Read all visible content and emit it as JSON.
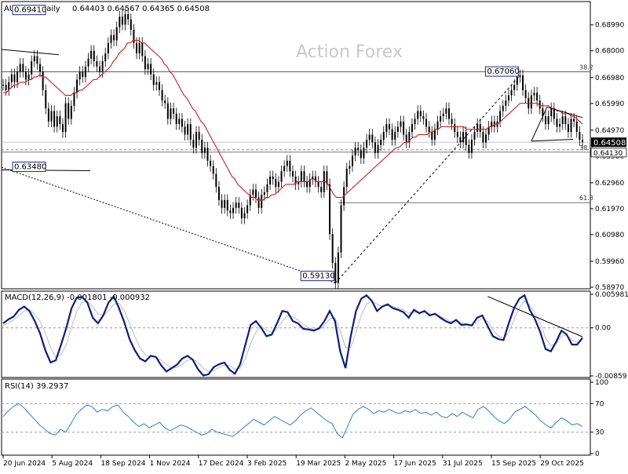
{
  "chart_data": [
    {
      "type": "candlestick",
      "panel": "price",
      "symbol_label": "AUDUSD,Daily",
      "ohlc_label": "0.64403 0.64567 0.64365 0.64508",
      "watermark": "Action Forex",
      "ylim": [
        0.5897,
        0.6982
      ],
      "y_ticks": [
        "0.68990",
        "0.68000",
        "0.66980",
        "0.65990",
        "0.64970",
        "0.63980",
        "0.62960",
        "0.61970",
        "0.60980",
        "0.59960",
        "0.58970"
      ],
      "current_price": "0.64508",
      "level_badge": "0.64130",
      "fib_levels": [
        {
          "label": "38.2",
          "value": 0.672
        },
        {
          "label": "38.2",
          "value": 0.6413
        },
        {
          "label": "61.8",
          "value": 0.622
        }
      ],
      "annotations": [
        {
          "text": "0.69410",
          "value": 0.6941
        },
        {
          "text": "0.67060",
          "value": 0.6706
        },
        {
          "text": "0.63480",
          "value": 0.6348
        },
        {
          "text": "0.59130",
          "value": 0.5913
        }
      ],
      "x_labels": [
        "20 Jun 2024",
        "5 Aug 2024",
        "18 Sep 2024",
        "1 Nov 2024",
        "17 Dec 2024",
        "3 Feb 2025",
        "19 Mar 2025",
        "2 May 2025",
        "17 Jun 2025",
        "31 Jul 2025",
        "15 Sep 2025",
        "29 Oct 2025"
      ],
      "close_series": [
        0.667,
        0.665,
        0.668,
        0.671,
        0.668,
        0.672,
        0.675,
        0.672,
        0.669,
        0.671,
        0.676,
        0.678,
        0.675,
        0.672,
        0.665,
        0.658,
        0.653,
        0.657,
        0.651,
        0.655,
        0.652,
        0.649,
        0.66,
        0.654,
        0.659,
        0.664,
        0.669,
        0.672,
        0.67,
        0.674,
        0.677,
        0.68,
        0.676,
        0.674,
        0.672,
        0.676,
        0.679,
        0.683,
        0.686,
        0.684,
        0.689,
        0.693,
        0.69,
        0.694,
        0.692,
        0.688,
        0.683,
        0.679,
        0.683,
        0.678,
        0.673,
        0.675,
        0.671,
        0.667,
        0.668,
        0.665,
        0.661,
        0.66,
        0.654,
        0.658,
        0.656,
        0.652,
        0.654,
        0.651,
        0.648,
        0.652,
        0.646,
        0.643,
        0.649,
        0.646,
        0.641,
        0.643,
        0.638,
        0.636,
        0.633,
        0.628,
        0.623,
        0.62,
        0.623,
        0.619,
        0.618,
        0.62,
        0.622,
        0.62,
        0.616,
        0.618,
        0.621,
        0.625,
        0.627,
        0.624,
        0.62,
        0.625,
        0.626,
        0.629,
        0.632,
        0.631,
        0.628,
        0.63,
        0.634,
        0.636,
        0.638,
        0.634,
        0.632,
        0.629,
        0.63,
        0.634,
        0.63,
        0.628,
        0.631,
        0.632,
        0.63,
        0.628,
        0.626,
        0.634,
        0.629,
        0.61,
        0.599,
        0.5913,
        0.603,
        0.621,
        0.628,
        0.635,
        0.636,
        0.64,
        0.643,
        0.642,
        0.639,
        0.643,
        0.646,
        0.648,
        0.645,
        0.641,
        0.644,
        0.646,
        0.649,
        0.652,
        0.65,
        0.646,
        0.649,
        0.651,
        0.653,
        0.648,
        0.645,
        0.649,
        0.652,
        0.654,
        0.657,
        0.655,
        0.654,
        0.651,
        0.649,
        0.646,
        0.65,
        0.653,
        0.655,
        0.656,
        0.658,
        0.654,
        0.652,
        0.649,
        0.647,
        0.645,
        0.649,
        0.644,
        0.641,
        0.646,
        0.649,
        0.652,
        0.649,
        0.645,
        0.648,
        0.651,
        0.653,
        0.651,
        0.653,
        0.657,
        0.659,
        0.661,
        0.663,
        0.665,
        0.667,
        0.67,
        0.6706,
        0.665,
        0.662,
        0.658,
        0.663,
        0.664,
        0.661,
        0.658,
        0.655,
        0.652,
        0.655,
        0.658,
        0.654,
        0.651,
        0.652,
        0.655,
        0.652,
        0.649,
        0.654,
        0.653,
        0.649,
        0.646,
        0.6451
      ],
      "ma_series": [
        0.664,
        0.664,
        0.665,
        0.666,
        0.667,
        0.667,
        0.668,
        0.668,
        0.668,
        0.669,
        0.669,
        0.67,
        0.67,
        0.671,
        0.67,
        0.67,
        0.669,
        0.668,
        0.667,
        0.666,
        0.665,
        0.664,
        0.663,
        0.663,
        0.663,
        0.664,
        0.664,
        0.665,
        0.665,
        0.666,
        0.667,
        0.668,
        0.669,
        0.669,
        0.67,
        0.671,
        0.672,
        0.673,
        0.674,
        0.676,
        0.677,
        0.679,
        0.68,
        0.681,
        0.683,
        0.683,
        0.684,
        0.684,
        0.684,
        0.683,
        0.683,
        0.682,
        0.681,
        0.68,
        0.679,
        0.678,
        0.677,
        0.675,
        0.674,
        0.672,
        0.671,
        0.669,
        0.667,
        0.665,
        0.663,
        0.662,
        0.66,
        0.658,
        0.657,
        0.655,
        0.653,
        0.652,
        0.65,
        0.648,
        0.646,
        0.644,
        0.642,
        0.64,
        0.638,
        0.636,
        0.634,
        0.632,
        0.631,
        0.629,
        0.628,
        0.627,
        0.626,
        0.625,
        0.624,
        0.624,
        0.623,
        0.623,
        0.623,
        0.624,
        0.624,
        0.625,
        0.625,
        0.626,
        0.627,
        0.628,
        0.629,
        0.629,
        0.629,
        0.629,
        0.63,
        0.63,
        0.63,
        0.63,
        0.63,
        0.631,
        0.631,
        0.63,
        0.63,
        0.63,
        0.63,
        0.629,
        0.627,
        0.625,
        0.624,
        0.624,
        0.624,
        0.625,
        0.626,
        0.627,
        0.628,
        0.629,
        0.63,
        0.631,
        0.632,
        0.633,
        0.634,
        0.635,
        0.636,
        0.637,
        0.638,
        0.639,
        0.64,
        0.641,
        0.642,
        0.643,
        0.643,
        0.644,
        0.645,
        0.645,
        0.646,
        0.647,
        0.647,
        0.648,
        0.648,
        0.648,
        0.648,
        0.649,
        0.649,
        0.65,
        0.65,
        0.651,
        0.651,
        0.651,
        0.651,
        0.651,
        0.651,
        0.651,
        0.651,
        0.651,
        0.65,
        0.65,
        0.65,
        0.65,
        0.65,
        0.65,
        0.65,
        0.65,
        0.651,
        0.651,
        0.652,
        0.652,
        0.653,
        0.654,
        0.655,
        0.656,
        0.657,
        0.658,
        0.659,
        0.66,
        0.66,
        0.66,
        0.66,
        0.66,
        0.66,
        0.66,
        0.659,
        0.659,
        0.659,
        0.659,
        0.658,
        0.658,
        0.657,
        0.657,
        0.656,
        0.656,
        0.656,
        0.655,
        0.655,
        0.654,
        0.653,
        0.652
      ],
      "series": [
        {
          "name": "price",
          "color": "#000000"
        },
        {
          "name": "moving average",
          "color": "#cc1f1f"
        }
      ]
    },
    {
      "type": "line",
      "panel": "macd",
      "label": "MACD(12,26,9) -0.001801 -0.000932",
      "ylim": [
        -0.00859,
        0.005981
      ],
      "y_ticks": [
        "0.005981",
        "0.00",
        "-0.00859"
      ],
      "series": [
        {
          "name": "MACD",
          "color": "#0b1f7a"
        },
        {
          "name": "signal",
          "color": "#bdbdbd"
        }
      ],
      "macd_values": [
        0.0008,
        0.0015,
        0.002,
        0.0032,
        0.0038,
        0.003,
        0.0012,
        -0.001,
        -0.004,
        -0.0062,
        -0.0058,
        -0.003,
        0.0,
        0.0035,
        0.0054,
        0.0055,
        0.0045,
        0.0018,
        0.0008,
        0.0022,
        0.0045,
        0.0056,
        0.0035,
        0.001,
        -0.002,
        -0.004,
        -0.0055,
        -0.006,
        -0.005,
        -0.0052,
        -0.0067,
        -0.0078,
        -0.0072,
        -0.0066,
        -0.0055,
        -0.005,
        -0.0057,
        -0.0074,
        -0.0085,
        -0.0083,
        -0.007,
        -0.0065,
        -0.0062,
        -0.0075,
        -0.0082,
        -0.0065,
        -0.003,
        0.0005,
        0.0012,
        0.0,
        -0.0015,
        -0.0012,
        0.0008,
        0.003,
        0.0028,
        0.0012,
        0.0008,
        -0.0002,
        -0.0003,
        -0.0005,
        -0.0001,
        0.0012,
        0.003,
        0.0012,
        -0.0042,
        -0.0072,
        -0.0015,
        0.003,
        0.0052,
        0.0058,
        0.0048,
        0.003,
        0.0038,
        0.0042,
        0.0035,
        0.0032,
        0.0028,
        0.0018,
        0.0032,
        0.0026,
        0.003,
        0.0022,
        0.0025,
        0.0018,
        0.0012,
        0.0008,
        0.0014,
        0.0005,
        0.0006,
        0.0004,
        0.0018,
        0.0022,
        0.0003,
        -0.0015,
        -0.002,
        -0.0022,
        0.0008,
        0.0035,
        0.0052,
        0.0058,
        0.0032,
        0.0015,
        -0.0008,
        -0.0038,
        -0.0042,
        -0.0025,
        -0.0005,
        -0.0012,
        -0.003,
        -0.003,
        -0.0018
      ],
      "signal_values": [
        0.0004,
        0.0009,
        0.0014,
        0.0022,
        0.003,
        0.0032,
        0.0024,
        0.0012,
        -0.001,
        -0.0035,
        -0.0052,
        -0.0048,
        -0.003,
        0.0002,
        0.003,
        0.0045,
        0.0048,
        0.0038,
        0.0025,
        0.0022,
        0.003,
        0.0042,
        0.0044,
        0.003,
        0.0008,
        -0.0015,
        -0.0035,
        -0.0048,
        -0.0052,
        -0.0052,
        -0.0058,
        -0.0066,
        -0.0072,
        -0.0071,
        -0.0065,
        -0.0058,
        -0.0056,
        -0.0062,
        -0.0072,
        -0.0078,
        -0.0076,
        -0.0071,
        -0.0066,
        -0.0068,
        -0.0074,
        -0.0072,
        -0.0055,
        -0.0028,
        -0.0008,
        0.0002,
        -0.0004,
        -0.0008,
        -0.0003,
        0.0012,
        0.0022,
        0.002,
        0.0014,
        0.0006,
        0.0,
        -0.0003,
        -0.0003,
        0.0004,
        0.0016,
        0.0018,
        -0.0005,
        -0.0035,
        -0.0035,
        -0.0008,
        0.0022,
        0.0042,
        0.0048,
        0.0042,
        0.0038,
        0.004,
        0.0038,
        0.0035,
        0.0032,
        0.0026,
        0.0028,
        0.0027,
        0.0028,
        0.0025,
        0.0024,
        0.0021,
        0.0016,
        0.0011,
        0.0012,
        0.0009,
        0.0007,
        0.0005,
        0.0011,
        0.0017,
        0.0011,
        -0.0003,
        -0.0014,
        -0.0019,
        -0.0008,
        0.0014,
        0.0036,
        0.0048,
        0.004,
        0.0026,
        0.0008,
        -0.0018,
        -0.0032,
        -0.0028,
        -0.0015,
        -0.0013,
        -0.0022,
        -0.0026,
        -0.0022
      ]
    },
    {
      "type": "line",
      "panel": "rsi",
      "label": "RSI(14) 39.2937",
      "ylim": [
        0,
        100
      ],
      "y_ticks": [
        "100",
        "70",
        "30",
        "0"
      ],
      "series": [
        {
          "name": "RSI",
          "color": "#2f7dd1"
        }
      ],
      "values": [
        52,
        60,
        66,
        70,
        64,
        56,
        48,
        40,
        34,
        28,
        26,
        34,
        30,
        42,
        55,
        62,
        68,
        66,
        58,
        62,
        60,
        66,
        68,
        58,
        52,
        44,
        38,
        42,
        36,
        40,
        44,
        36,
        32,
        36,
        40,
        38,
        34,
        30,
        26,
        28,
        34,
        30,
        28,
        26,
        24,
        30,
        36,
        42,
        48,
        44,
        40,
        46,
        52,
        48,
        44,
        40,
        46,
        54,
        60,
        64,
        58,
        52,
        46,
        42,
        28,
        22,
        38,
        55,
        62,
        66,
        62,
        56,
        60,
        58,
        62,
        58,
        56,
        60,
        58,
        62,
        56,
        58,
        54,
        58,
        52,
        50,
        56,
        52,
        58,
        54,
        50,
        62,
        66,
        60,
        52,
        46,
        42,
        48,
        58,
        62,
        66,
        60,
        54,
        46,
        40,
        36,
        44,
        50,
        46,
        40,
        42,
        38
      ],
      "last_value": 39.2937
    }
  ],
  "watermark": "Action Forex",
  "macd_label": "MACD(12,26,9) -0.001801 -0.000932",
  "rsi_label": "RSI(14) 39.2937"
}
